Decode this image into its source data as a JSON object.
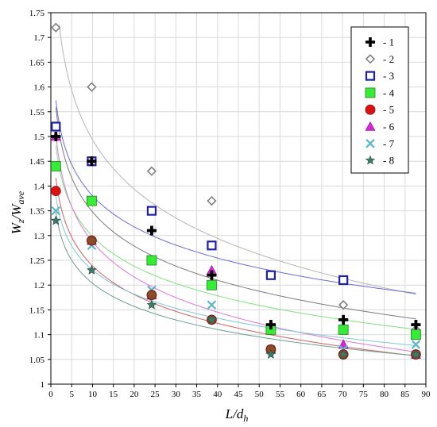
{
  "chart_data": {
    "type": "scatter",
    "xlabel": "L/d",
    "xlabel_sub": "h",
    "ylabel": "W",
    "ylabel_sub1": "z",
    "ylabel_mid": "/W",
    "ylabel_sub2": "ave",
    "xlim": [
      0,
      90
    ],
    "ylim": [
      1,
      1.75
    ],
    "x_ticks": [
      0,
      5,
      10,
      15,
      20,
      25,
      30,
      35,
      40,
      45,
      50,
      55,
      60,
      65,
      70,
      75,
      80,
      85,
      90
    ],
    "y_ticks": [
      1,
      1.05,
      1.1,
      1.15,
      1.2,
      1.25,
      1.3,
      1.35,
      1.4,
      1.45,
      1.5,
      1.55,
      1.6,
      1.65,
      1.7,
      1.75
    ],
    "y_tick_labels": [
      "1",
      "1.05",
      "1.1",
      "1.15",
      "1.2",
      "1.25",
      "1.3",
      "1.35",
      "1.4",
      "1.45",
      "1.5",
      "1.55",
      "1.6",
      "1.65",
      "1.7",
      "1.75"
    ],
    "legend_position": "top-right",
    "series": [
      {
        "name": "- 1",
        "marker": "plus",
        "color": "#000000",
        "trend_color": "#7a7a7a",
        "points": [
          [
            1.2,
            1.5
          ],
          [
            9.8,
            1.45
          ],
          [
            24.2,
            1.31
          ],
          [
            38.6,
            1.22
          ],
          [
            52.8,
            1.12
          ],
          [
            70.2,
            1.13
          ],
          [
            87.6,
            1.12
          ]
        ]
      },
      {
        "name": "- 2",
        "marker": "diamond",
        "color": "#808080",
        "trend_color": "#b4b4b4",
        "points": [
          [
            1.2,
            1.72
          ],
          [
            9.8,
            1.6
          ],
          [
            24.2,
            1.43
          ],
          [
            38.6,
            1.37
          ],
          [
            52.8,
            1.22
          ],
          [
            70.2,
            1.16
          ],
          [
            87.6,
            1.11
          ]
        ]
      },
      {
        "name": "- 3",
        "marker": "square-open",
        "color": "#1f1fa8",
        "trend_color": "#6b6bd6",
        "points": [
          [
            1.2,
            1.52
          ],
          [
            9.8,
            1.45
          ],
          [
            24.2,
            1.35
          ],
          [
            38.6,
            1.28
          ],
          [
            52.8,
            1.22
          ],
          [
            70.2,
            1.21
          ],
          [
            87.6,
            1.1
          ]
        ]
      },
      {
        "name": "- 4",
        "marker": "square-filled",
        "color": "#33ee33",
        "trend_color": "#7fe07f",
        "points": [
          [
            1.2,
            1.44
          ],
          [
            9.8,
            1.37
          ],
          [
            24.2,
            1.25
          ],
          [
            38.6,
            1.2
          ],
          [
            52.8,
            1.11
          ],
          [
            70.2,
            1.11
          ],
          [
            87.6,
            1.1
          ]
        ]
      },
      {
        "name": "- 5",
        "marker": "circle",
        "color": "#dd1111",
        "trend_color": "#d06060",
        "points": [
          [
            1.2,
            1.39
          ],
          [
            9.8,
            1.29
          ],
          [
            24.2,
            1.18
          ],
          [
            38.6,
            1.13
          ],
          [
            52.8,
            1.07
          ],
          [
            70.2,
            1.06
          ],
          [
            87.6,
            1.06
          ]
        ]
      },
      {
        "name": "- 6",
        "marker": "triangle",
        "color": "#dd22dd",
        "trend_color": "#dd77dd",
        "points": [
          [
            1.2,
            1.5
          ],
          [
            9.8,
            1.29
          ],
          [
            24.2,
            1.18
          ],
          [
            38.6,
            1.23
          ],
          [
            52.8,
            1.07
          ],
          [
            70.2,
            1.08
          ],
          [
            87.6,
            1.06
          ]
        ]
      },
      {
        "name": "- 7",
        "marker": "cross",
        "color": "#5ab8c8",
        "trend_color": "#7ac8d6",
        "points": [
          [
            1.2,
            1.35
          ],
          [
            9.8,
            1.28
          ],
          [
            24.2,
            1.19
          ],
          [
            38.6,
            1.16
          ],
          [
            52.8,
            1.07
          ],
          [
            70.2,
            1.07
          ],
          [
            87.6,
            1.08
          ]
        ]
      },
      {
        "name": "- 8",
        "marker": "star",
        "color": "#3d7a6a",
        "trend_color": "#6a9e8e",
        "points": [
          [
            1.2,
            1.33
          ],
          [
            9.8,
            1.23
          ],
          [
            24.2,
            1.16
          ],
          [
            38.6,
            1.13
          ],
          [
            52.8,
            1.06
          ],
          [
            70.2,
            1.06
          ],
          [
            87.6,
            1.06
          ]
        ]
      }
    ],
    "overlay_dots": {
      "color": "#8b4a2a",
      "points": [
        [
          9.8,
          1.29
        ],
        [
          24.2,
          1.18
        ],
        [
          38.6,
          1.13
        ],
        [
          52.8,
          1.07
        ],
        [
          70.2,
          1.06
        ],
        [
          87.6,
          1.06
        ]
      ]
    }
  }
}
